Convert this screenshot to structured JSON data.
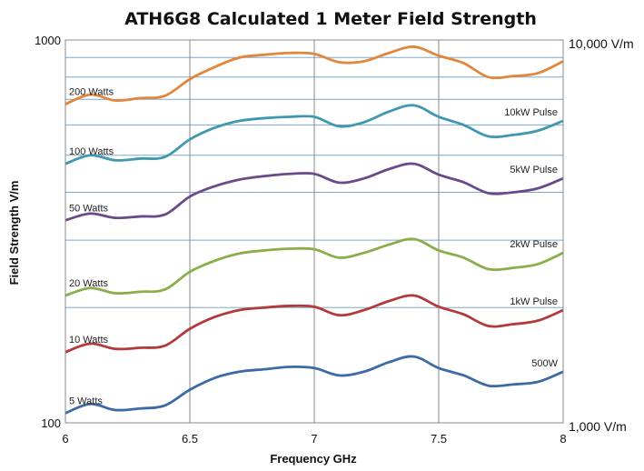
{
  "chart_data": {
    "type": "line",
    "title": "ATH6G8 Calculated 1 Meter Field Strength",
    "xlabel": "Frequency GHz",
    "ylabel": "Field Strength V/m",
    "x_scale": "linear",
    "y_scale": "log",
    "xlim": [
      6,
      8
    ],
    "ylim": [
      100,
      1000
    ],
    "x_ticks": [
      "6",
      "6.5",
      "7",
      "7.5",
      "8"
    ],
    "y_ticks": [
      "100",
      "1000"
    ],
    "right_axis_ticks": [
      "1,000 V/m",
      "10,000 V/m"
    ],
    "grid": true,
    "x": [
      6.0,
      6.1,
      6.2,
      6.3,
      6.4,
      6.5,
      6.6,
      6.7,
      6.8,
      6.9,
      7.0,
      7.1,
      7.2,
      7.3,
      7.4,
      7.5,
      7.6,
      7.7,
      7.8,
      7.9,
      8.0
    ],
    "series": [
      {
        "name": "200 Watts",
        "right_label": "",
        "color": "#E2863C",
        "values": [
          680,
          720,
          695,
          705,
          715,
          790,
          850,
          900,
          915,
          925,
          920,
          875,
          880,
          925,
          960,
          910,
          870,
          800,
          805,
          820,
          880
        ]
      },
      {
        "name": "100 Watts",
        "right_label": "10kW Pulse",
        "color": "#4097B0",
        "values": [
          475,
          500,
          485,
          490,
          495,
          550,
          590,
          615,
          625,
          630,
          630,
          595,
          610,
          650,
          675,
          630,
          600,
          560,
          565,
          580,
          615
        ]
      },
      {
        "name": "50 Watts",
        "right_label": "5kW Pulse",
        "color": "#6A4A8A",
        "values": [
          338,
          352,
          343,
          346,
          350,
          390,
          415,
          432,
          441,
          447,
          447,
          424,
          435,
          460,
          475,
          445,
          425,
          398,
          400,
          410,
          435
        ]
      },
      {
        "name": "20 Watts",
        "right_label": "2kW Pulse",
        "color": "#8AAE4A",
        "values": [
          215,
          225,
          218,
          220,
          223,
          248,
          265,
          277,
          282,
          285,
          284,
          270,
          278,
          292,
          302,
          282,
          270,
          252,
          254,
          260,
          278
        ]
      },
      {
        "name": "10 Watts",
        "right_label": "1kW Pulse",
        "color": "#B23A3A",
        "values": [
          153,
          161,
          156,
          157,
          159,
          176,
          189,
          197,
          200,
          202,
          201,
          191,
          197,
          208,
          215,
          201,
          192,
          179,
          181,
          185,
          197
        ]
      },
      {
        "name": "5 Watts",
        "right_label": "500W",
        "color": "#3C6AA6",
        "values": [
          106,
          112,
          108,
          109,
          111,
          122,
          131,
          136,
          138,
          140,
          139,
          133,
          136,
          144,
          149,
          139,
          133,
          125,
          126,
          128,
          136
        ]
      }
    ]
  }
}
